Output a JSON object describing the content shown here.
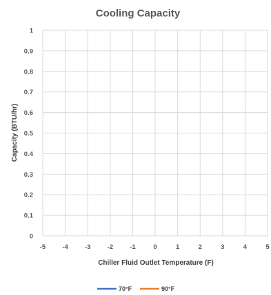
{
  "chart_data": {
    "type": "line",
    "title": "Cooling Capacity",
    "xlabel": "Chiller Fluid Outlet Temperature (F)",
    "ylabel": "Capacity (BTU/hr)",
    "xlim": [
      -5,
      5
    ],
    "ylim": [
      0,
      1
    ],
    "x_ticks": [
      "-5",
      "-4",
      "-3",
      "-2",
      "-1",
      "0",
      "1",
      "2",
      "3",
      "4",
      "5"
    ],
    "y_ticks": [
      "0",
      "0.1",
      "0.2",
      "0.3",
      "0.4",
      "0.5",
      "0.6",
      "0.7",
      "0.8",
      "0.9",
      "1"
    ],
    "grid": true,
    "legend_position": "bottom",
    "series": [
      {
        "name": "70°F",
        "color": "#4472C4",
        "points": []
      },
      {
        "name": "90°F",
        "color": "#ED7D31",
        "points": []
      }
    ]
  }
}
